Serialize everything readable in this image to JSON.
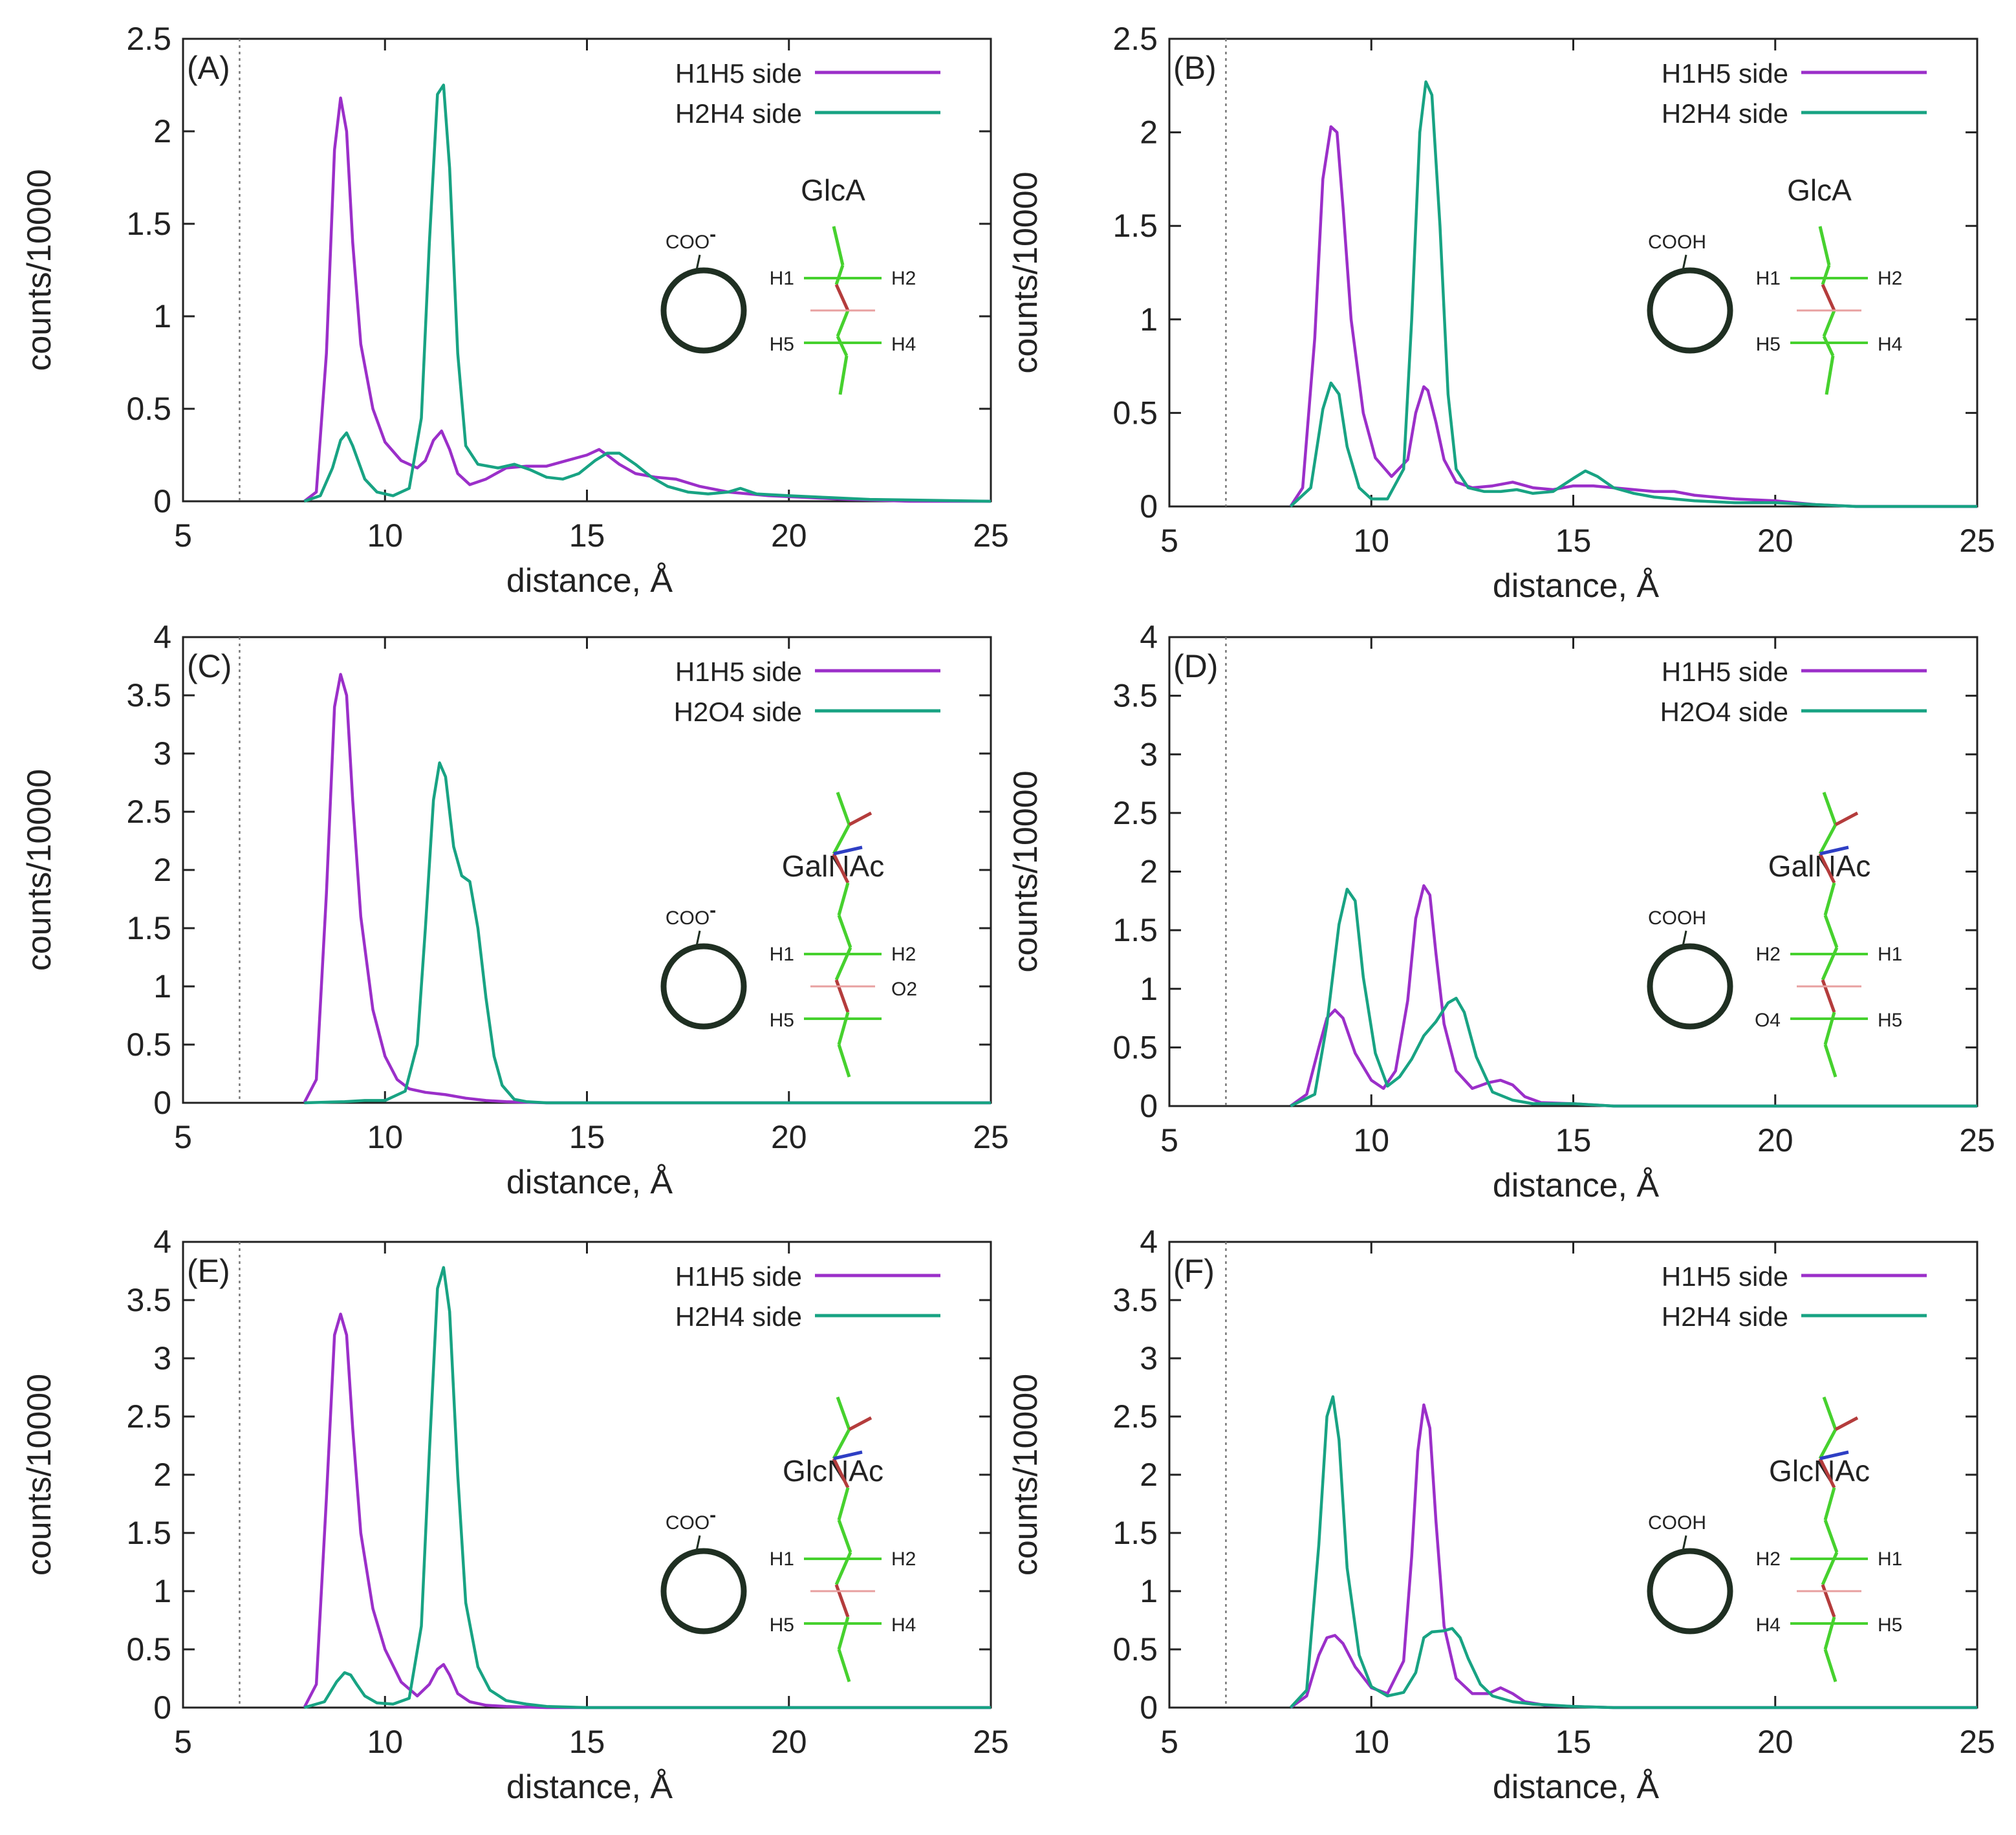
{
  "figure": {
    "x_axis_label": "distance, Å",
    "y_axis_label": "counts/10000",
    "x_ticks": [
      "5",
      "10",
      "15",
      "20",
      "25"
    ],
    "reference_line_x": 6.4
  },
  "colors": {
    "h1h5": "#9b2fc9",
    "h2": "#18a383",
    "axis": "#222222",
    "ring": "#1f2f22",
    "bond_green": "#46d12e",
    "bond_red": "#b43c3c",
    "bond_blue": "#2e3fc4",
    "bond_pink": "#e8a0a0"
  },
  "chart_data": [
    {
      "panel": "(A)",
      "type": "line",
      "xlim": [
        5,
        25
      ],
      "ylim": [
        0,
        2.5
      ],
      "y_ticks": [
        "0",
        "0.5",
        "1",
        "1.5",
        "2",
        "2.5"
      ],
      "legend": [
        "H1H5 side",
        "H2H4 side"
      ],
      "inset": {
        "sugar": "GlcA",
        "group": "COO",
        "charge": "-",
        "variant": "glc",
        "labels": {
          "tl": "H1",
          "tr": "H2",
          "bl": "H5",
          "br": "H4",
          "mid": ""
        }
      },
      "series": [
        {
          "name": "H1H5 side",
          "x": [
            8.0,
            8.3,
            8.55,
            8.75,
            8.9,
            9.05,
            9.2,
            9.4,
            9.7,
            10.0,
            10.4,
            10.8,
            11.0,
            11.2,
            11.4,
            11.6,
            11.8,
            12.1,
            12.5,
            13.0,
            13.5,
            14.0,
            14.5,
            15.0,
            15.3,
            15.5,
            15.8,
            16.2,
            16.7,
            17.2,
            17.8,
            18.5,
            19.5,
            20.5,
            21.5,
            23,
            25
          ],
          "y": [
            0,
            0.05,
            0.8,
            1.9,
            2.18,
            2.0,
            1.4,
            0.85,
            0.5,
            0.32,
            0.22,
            0.18,
            0.22,
            0.33,
            0.38,
            0.28,
            0.15,
            0.09,
            0.12,
            0.18,
            0.19,
            0.19,
            0.22,
            0.25,
            0.28,
            0.25,
            0.2,
            0.15,
            0.13,
            0.12,
            0.08,
            0.05,
            0.03,
            0.02,
            0.01,
            0,
            0
          ]
        },
        {
          "name": "H2H4 side",
          "x": [
            8.0,
            8.4,
            8.7,
            8.9,
            9.05,
            9.2,
            9.5,
            9.8,
            10.2,
            10.6,
            10.9,
            11.1,
            11.3,
            11.45,
            11.6,
            11.8,
            12.0,
            12.3,
            12.8,
            13.2,
            13.6,
            14.0,
            14.4,
            14.8,
            15.2,
            15.5,
            15.8,
            16.2,
            16.6,
            17.0,
            17.5,
            18.0,
            18.5,
            18.8,
            19.2,
            20,
            21,
            22,
            25
          ],
          "y": [
            0,
            0.03,
            0.18,
            0.33,
            0.37,
            0.3,
            0.12,
            0.05,
            0.03,
            0.07,
            0.45,
            1.4,
            2.2,
            2.25,
            1.8,
            0.8,
            0.3,
            0.2,
            0.18,
            0.2,
            0.17,
            0.13,
            0.12,
            0.15,
            0.22,
            0.26,
            0.26,
            0.2,
            0.13,
            0.08,
            0.05,
            0.04,
            0.05,
            0.07,
            0.04,
            0.03,
            0.02,
            0.01,
            0
          ]
        }
      ]
    },
    {
      "panel": "(B)",
      "type": "line",
      "xlim": [
        5,
        25
      ],
      "ylim": [
        0,
        2.5
      ],
      "y_ticks": [
        "0",
        "0.5",
        "1",
        "1.5",
        "2",
        "2.5"
      ],
      "legend": [
        "H1H5 side",
        "H2H4 side"
      ],
      "inset": {
        "sugar": "GlcA",
        "group": "COOH",
        "charge": "",
        "variant": "glc",
        "labels": {
          "tl": "H1",
          "tr": "H2",
          "bl": "H5",
          "br": "H4",
          "mid": ""
        }
      },
      "series": [
        {
          "name": "H1H5 side",
          "x": [
            8.0,
            8.3,
            8.6,
            8.8,
            9.0,
            9.15,
            9.3,
            9.5,
            9.8,
            10.1,
            10.5,
            10.9,
            11.1,
            11.3,
            11.4,
            11.6,
            11.8,
            12.1,
            12.5,
            13.0,
            13.5,
            14.0,
            14.5,
            15.0,
            15.5,
            16.0,
            16.5,
            17.0,
            17.5,
            18.0,
            19,
            20,
            21,
            22,
            25
          ],
          "y": [
            0,
            0.1,
            0.9,
            1.75,
            2.03,
            2.0,
            1.6,
            1.0,
            0.5,
            0.26,
            0.16,
            0.25,
            0.5,
            0.64,
            0.62,
            0.45,
            0.25,
            0.13,
            0.1,
            0.11,
            0.13,
            0.1,
            0.09,
            0.11,
            0.11,
            0.1,
            0.09,
            0.08,
            0.08,
            0.06,
            0.04,
            0.03,
            0.01,
            0,
            0
          ]
        },
        {
          "name": "H2H4 side",
          "x": [
            8.0,
            8.5,
            8.8,
            9.0,
            9.2,
            9.4,
            9.7,
            10.0,
            10.4,
            10.8,
            11.0,
            11.2,
            11.35,
            11.5,
            11.7,
            11.9,
            12.1,
            12.4,
            12.8,
            13.2,
            13.6,
            14.0,
            14.5,
            15.0,
            15.3,
            15.6,
            16.0,
            16.5,
            17.0,
            17.5,
            18.0,
            19,
            20,
            21,
            22,
            25
          ],
          "y": [
            0,
            0.1,
            0.52,
            0.66,
            0.6,
            0.32,
            0.1,
            0.04,
            0.04,
            0.2,
            1.0,
            2.0,
            2.27,
            2.2,
            1.5,
            0.6,
            0.2,
            0.1,
            0.08,
            0.08,
            0.09,
            0.07,
            0.08,
            0.15,
            0.19,
            0.16,
            0.1,
            0.07,
            0.05,
            0.04,
            0.03,
            0.02,
            0.02,
            0.01,
            0,
            0
          ]
        }
      ]
    },
    {
      "panel": "(C)",
      "type": "line",
      "xlim": [
        5,
        25
      ],
      "ylim": [
        0,
        4
      ],
      "y_ticks": [
        "0",
        "0.5",
        "1",
        "1.5",
        "2",
        "2.5",
        "3",
        "3.5",
        "4"
      ],
      "legend": [
        "H1H5 side",
        "H2O4 side"
      ],
      "inset": {
        "sugar": "GalNAc",
        "group": "COO",
        "charge": "-",
        "variant": "nac",
        "labels": {
          "tl": "H1",
          "tr": "H2",
          "bl": "H5",
          "br": "",
          "mid": "O2"
        }
      },
      "series": [
        {
          "name": "H1H5 side",
          "x": [
            8.0,
            8.3,
            8.55,
            8.75,
            8.9,
            9.05,
            9.2,
            9.4,
            9.7,
            10.0,
            10.3,
            10.6,
            11.0,
            11.5,
            12.0,
            12.5,
            13,
            14,
            15,
            25
          ],
          "y": [
            0,
            0.2,
            1.8,
            3.4,
            3.68,
            3.5,
            2.6,
            1.6,
            0.8,
            0.4,
            0.2,
            0.12,
            0.09,
            0.07,
            0.04,
            0.02,
            0.01,
            0,
            0,
            0
          ]
        },
        {
          "name": "H2O4 side",
          "x": [
            8.0,
            9.0,
            9.5,
            10.0,
            10.5,
            10.8,
            11.0,
            11.2,
            11.35,
            11.5,
            11.7,
            11.9,
            12.1,
            12.3,
            12.5,
            12.7,
            12.9,
            13.2,
            13.5,
            14,
            15,
            25
          ],
          "y": [
            0,
            0.01,
            0.02,
            0.02,
            0.1,
            0.5,
            1.5,
            2.6,
            2.92,
            2.8,
            2.2,
            1.95,
            1.9,
            1.5,
            0.9,
            0.4,
            0.15,
            0.03,
            0.01,
            0,
            0,
            0
          ]
        }
      ]
    },
    {
      "panel": "(D)",
      "type": "line",
      "xlim": [
        5,
        25
      ],
      "ylim": [
        0,
        4
      ],
      "y_ticks": [
        "0",
        "0.5",
        "1",
        "1.5",
        "2",
        "2.5",
        "3",
        "3.5",
        "4"
      ],
      "legend": [
        "H1H5 side",
        "H2O4 side"
      ],
      "inset": {
        "sugar": "GalNAc",
        "group": "COOH",
        "charge": "",
        "variant": "nac_flip",
        "labels": {
          "tl": "H2",
          "tr": "H1",
          "bl": "O4",
          "br": "H5",
          "mid": ""
        }
      },
      "series": [
        {
          "name": "H1H5 side",
          "x": [
            8.0,
            8.4,
            8.7,
            8.9,
            9.1,
            9.3,
            9.6,
            10.0,
            10.3,
            10.6,
            10.9,
            11.1,
            11.3,
            11.45,
            11.6,
            11.8,
            12.1,
            12.5,
            12.9,
            13.2,
            13.5,
            13.8,
            14.2,
            15,
            16,
            25
          ],
          "y": [
            0,
            0.1,
            0.5,
            0.75,
            0.82,
            0.75,
            0.45,
            0.22,
            0.15,
            0.3,
            0.9,
            1.6,
            1.88,
            1.8,
            1.3,
            0.7,
            0.3,
            0.15,
            0.2,
            0.22,
            0.18,
            0.08,
            0.03,
            0.02,
            0,
            0
          ]
        },
        {
          "name": "H2O4 side",
          "x": [
            8.0,
            8.6,
            8.9,
            9.2,
            9.4,
            9.6,
            9.8,
            10.1,
            10.4,
            10.7,
            11.0,
            11.3,
            11.6,
            11.9,
            12.1,
            12.3,
            12.6,
            13.0,
            13.5,
            14.0,
            15,
            16,
            25
          ],
          "y": [
            0,
            0.1,
            0.7,
            1.55,
            1.85,
            1.75,
            1.1,
            0.45,
            0.17,
            0.25,
            0.4,
            0.6,
            0.72,
            0.88,
            0.92,
            0.8,
            0.42,
            0.12,
            0.05,
            0.02,
            0.02,
            0,
            0
          ]
        }
      ]
    },
    {
      "panel": "(E)",
      "type": "line",
      "xlim": [
        5,
        25
      ],
      "ylim": [
        0,
        4
      ],
      "y_ticks": [
        "0",
        "0.5",
        "1",
        "1.5",
        "2",
        "2.5",
        "3",
        "3.5",
        "4"
      ],
      "legend": [
        "H1H5 side",
        "H2H4 side"
      ],
      "inset": {
        "sugar": "GlcNAc",
        "group": "COO",
        "charge": "-",
        "variant": "nac",
        "labels": {
          "tl": "H1",
          "tr": "H2",
          "bl": "H5",
          "br": "H4",
          "mid": ""
        }
      },
      "series": [
        {
          "name": "H1H5 side",
          "x": [
            8.0,
            8.3,
            8.55,
            8.75,
            8.9,
            9.05,
            9.2,
            9.4,
            9.7,
            10.0,
            10.4,
            10.8,
            11.1,
            11.3,
            11.45,
            11.6,
            11.8,
            12.1,
            12.5,
            13,
            14,
            25
          ],
          "y": [
            0,
            0.2,
            1.8,
            3.2,
            3.38,
            3.2,
            2.4,
            1.5,
            0.85,
            0.5,
            0.22,
            0.1,
            0.2,
            0.33,
            0.37,
            0.28,
            0.12,
            0.05,
            0.02,
            0.01,
            0,
            0
          ]
        },
        {
          "name": "H2H4 side",
          "x": [
            8.0,
            8.5,
            8.8,
            9.0,
            9.15,
            9.3,
            9.5,
            9.8,
            10.2,
            10.6,
            10.9,
            11.1,
            11.3,
            11.45,
            11.6,
            11.8,
            12.0,
            12.3,
            12.6,
            13.0,
            13.5,
            14,
            15,
            25
          ],
          "y": [
            0,
            0.05,
            0.22,
            0.3,
            0.28,
            0.2,
            0.1,
            0.04,
            0.03,
            0.08,
            0.7,
            2.2,
            3.6,
            3.78,
            3.4,
            2.0,
            0.9,
            0.35,
            0.15,
            0.06,
            0.03,
            0.01,
            0,
            0
          ]
        }
      ]
    },
    {
      "panel": "(F)",
      "type": "line",
      "xlim": [
        5,
        25
      ],
      "ylim": [
        0,
        4
      ],
      "y_ticks": [
        "0",
        "0.5",
        "1",
        "1.5",
        "2",
        "2.5",
        "3",
        "3.5",
        "4"
      ],
      "legend": [
        "H1H5 side",
        "H2H4 side"
      ],
      "inset": {
        "sugar": "GlcNAc",
        "group": "COOH",
        "charge": "",
        "variant": "nac_flip",
        "labels": {
          "tl": "H2",
          "tr": "H1",
          "bl": "H4",
          "br": "H5",
          "mid": ""
        }
      },
      "series": [
        {
          "name": "H1H5 side",
          "x": [
            8.0,
            8.4,
            8.7,
            8.9,
            9.1,
            9.3,
            9.6,
            10.0,
            10.4,
            10.8,
            11.0,
            11.15,
            11.3,
            11.45,
            11.6,
            11.8,
            12.1,
            12.5,
            12.9,
            13.2,
            13.5,
            13.8,
            14.3,
            15,
            16,
            25
          ],
          "y": [
            0,
            0.1,
            0.45,
            0.6,
            0.62,
            0.55,
            0.35,
            0.17,
            0.12,
            0.4,
            1.3,
            2.2,
            2.6,
            2.4,
            1.6,
            0.7,
            0.25,
            0.12,
            0.12,
            0.17,
            0.12,
            0.05,
            0.02,
            0.01,
            0,
            0
          ]
        },
        {
          "name": "H2H4 side",
          "x": [
            8.0,
            8.4,
            8.7,
            8.9,
            9.05,
            9.2,
            9.4,
            9.7,
            10.0,
            10.4,
            10.8,
            11.1,
            11.3,
            11.5,
            11.8,
            12.0,
            12.2,
            12.4,
            12.7,
            13.0,
            13.5,
            14.0,
            15,
            16,
            25
          ],
          "y": [
            0,
            0.15,
            1.4,
            2.5,
            2.67,
            2.3,
            1.2,
            0.45,
            0.18,
            0.1,
            0.13,
            0.3,
            0.6,
            0.65,
            0.66,
            0.68,
            0.6,
            0.42,
            0.2,
            0.1,
            0.05,
            0.03,
            0.01,
            0,
            0
          ]
        }
      ]
    }
  ]
}
